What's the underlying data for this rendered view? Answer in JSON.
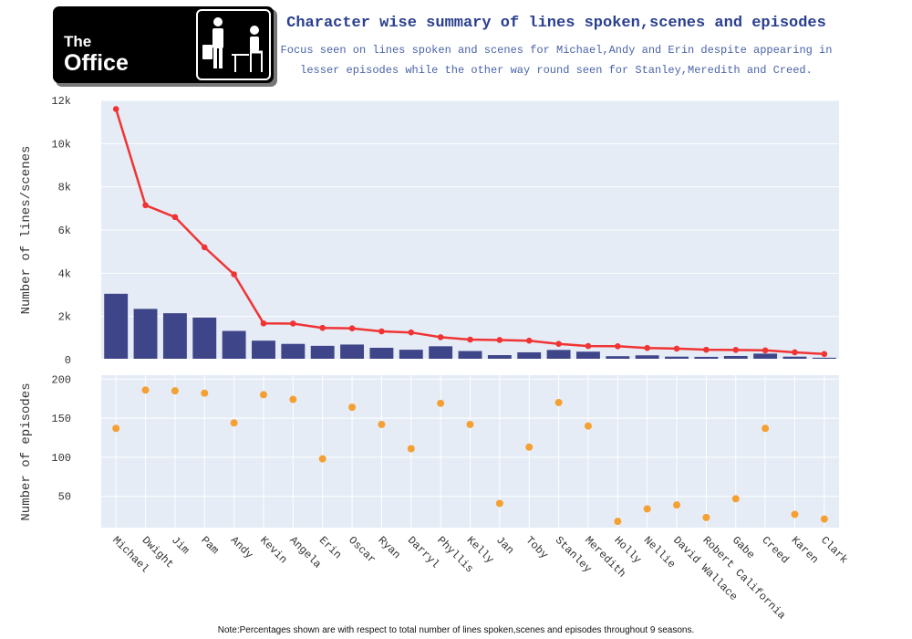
{
  "header": {
    "logo_text_line1": "The",
    "logo_text_line2": "Office",
    "title": "Character wise summary of lines spoken,scenes and episodes",
    "subtitle_line1": "Focus seen on lines spoken and scenes for Michael,Andy and Erin despite appearing in",
    "subtitle_line2": "lesser episodes while the other way round seen for Stanley,Meredith and Creed."
  },
  "footnote": "Note:Percentages shown are with respect to total number of lines spoken,scenes and episodes throughout 9 seasons.",
  "colors": {
    "plot_bg": "#e5ecf6",
    "bar": "#3f4589",
    "line": "#f03434",
    "scatter": "#f5a032"
  },
  "chart_data": [
    {
      "type": "bar+line",
      "ylabel": "Number of lines/scenes",
      "ylim": [
        0,
        12000
      ],
      "yticks": [
        0,
        2000,
        4000,
        6000,
        8000,
        10000,
        12000
      ],
      "ytick_labels": [
        "0",
        "2k",
        "4k",
        "6k",
        "8k",
        "10k",
        "12k"
      ],
      "grid": true,
      "categories": [
        "Michael",
        "Dwight",
        "Jim",
        "Pam",
        "Andy",
        "Kevin",
        "Angela",
        "Erin",
        "Oscar",
        "Ryan",
        "Darryl",
        "Phyllis",
        "Kelly",
        "Jan",
        "Toby",
        "Stanley",
        "Meredith",
        "Holly",
        "Nellie",
        "David Wallace",
        "Robert California",
        "Gabe",
        "Creed",
        "Karen",
        "Clark"
      ],
      "series": [
        {
          "mark": "bar",
          "values": [
            3050,
            2350,
            2150,
            1950,
            1330,
            880,
            730,
            640,
            700,
            550,
            460,
            620,
            400,
            210,
            340,
            450,
            370,
            160,
            200,
            140,
            130,
            170,
            280,
            140,
            90
          ]
        },
        {
          "mark": "line",
          "values": [
            11600,
            7150,
            6600,
            5200,
            3950,
            1680,
            1670,
            1470,
            1450,
            1310,
            1260,
            1040,
            930,
            910,
            880,
            730,
            630,
            620,
            540,
            510,
            460,
            450,
            430,
            340,
            260
          ]
        }
      ]
    },
    {
      "type": "scatter",
      "ylabel": "Number of episodes",
      "ylim": [
        10,
        205
      ],
      "yticks": [
        50,
        100,
        150,
        200
      ],
      "ytick_labels": [
        "50",
        "100",
        "150",
        "200"
      ],
      "grid": true,
      "categories": [
        "Michael",
        "Dwight",
        "Jim",
        "Pam",
        "Andy",
        "Kevin",
        "Angela",
        "Erin",
        "Oscar",
        "Ryan",
        "Darryl",
        "Phyllis",
        "Kelly",
        "Jan",
        "Toby",
        "Stanley",
        "Meredith",
        "Holly",
        "Nellie",
        "David Wallace",
        "Robert California",
        "Gabe",
        "Creed",
        "Karen",
        "Clark"
      ],
      "series": [
        {
          "values": [
            137,
            186,
            185,
            182,
            144,
            180,
            174,
            98,
            164,
            142,
            111,
            169,
            142,
            41,
            113,
            170,
            140,
            18,
            34,
            39,
            23,
            47,
            137,
            27,
            21
          ]
        }
      ]
    }
  ]
}
